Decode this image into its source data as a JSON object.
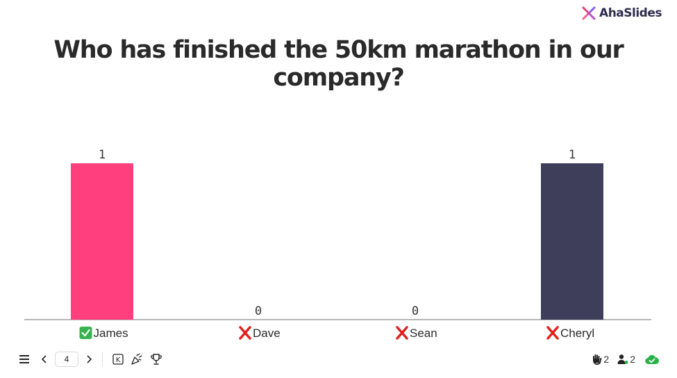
{
  "brand": {
    "name": "AhaSlides"
  },
  "question": "Who has finished the 50km marathon in our company?",
  "chart_data": {
    "type": "bar",
    "categories": [
      "James",
      "Dave",
      "Sean",
      "Cheryl"
    ],
    "values": [
      1,
      0,
      0,
      1
    ],
    "correct": [
      true,
      false,
      false,
      false
    ],
    "colors": [
      "#ff3f7e",
      "#d6d6d6",
      "#d6d6d6",
      "#3e3d5a"
    ],
    "ylim": [
      0,
      1
    ],
    "title": "Who has finished the 50km marathon in our company?",
    "xlabel": "",
    "ylabel": ""
  },
  "icons": {
    "correct": "check-mark-icon",
    "incorrect": "cross-mark-icon"
  },
  "toolbar": {
    "current_page": "4",
    "keyboard_key": "K"
  },
  "stats": {
    "hands_raised": "2",
    "participants": "2"
  }
}
